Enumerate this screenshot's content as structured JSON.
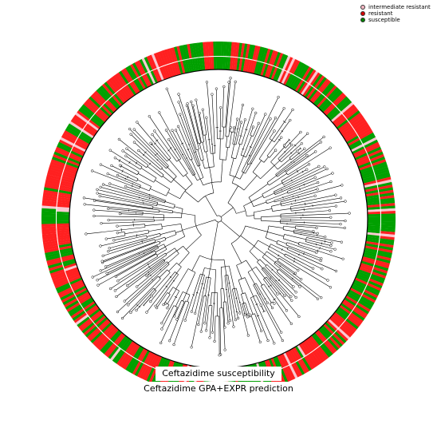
{
  "legend": {
    "items": [
      {
        "label": "intermediate resistant",
        "color": "#f4b6c2"
      },
      {
        "label": "resistant",
        "color": "#d40000"
      },
      {
        "label": "susceptible",
        "color": "#008000"
      }
    ]
  },
  "inner_ring_label": "Ceftazidime susceptibility",
  "outer_ring_label": "Ceftazidime GPA+EXPR prediction",
  "colors": {
    "intermediate": "#f9c9d2",
    "resistant": "#ff2020",
    "susceptible": "#00a000",
    "tree": "#000000"
  }
}
